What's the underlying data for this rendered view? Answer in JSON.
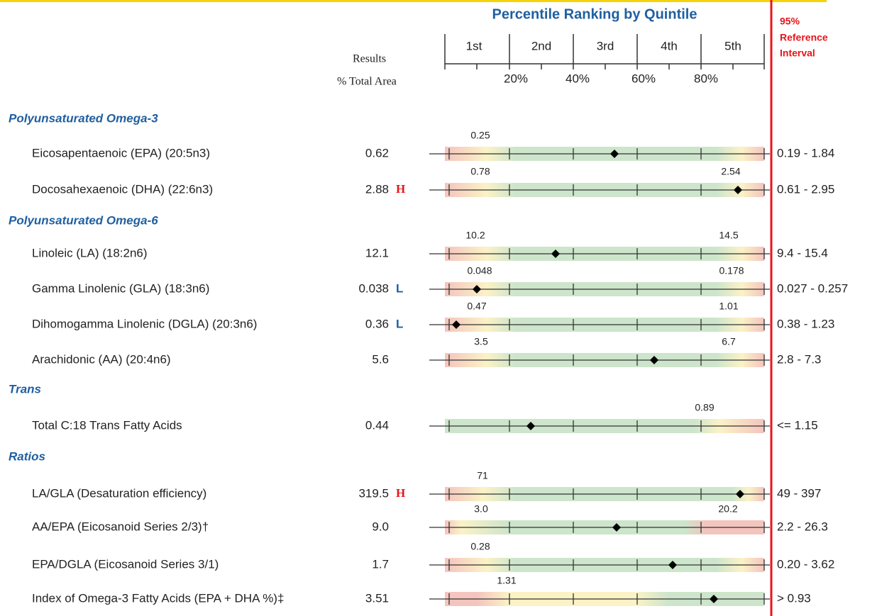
{
  "header": {
    "title": "Percentile Ranking by Quintile",
    "quintiles": [
      "1st",
      "2nd",
      "3rd",
      "4th",
      "5th"
    ],
    "percentiles": [
      "20%",
      "40%",
      "60%",
      "80%"
    ],
    "results_label": "Results",
    "units_label": "% Total Area",
    "reference_label": [
      "95%",
      "Reference",
      "Interval"
    ]
  },
  "sections": [
    {
      "title": "Polyunsaturated Omega-3",
      "rows": [
        {
          "name": "Eicosapentaenoic (EPA) (20:5n3)",
          "result": "0.62",
          "cutoffs": [
            "0.25"
          ],
          "reference": "0.19 - 1.84"
        },
        {
          "name": "Docosahexaenoic (DHA) (22:6n3)",
          "result": "2.88",
          "flag": "H",
          "cutoffs": [
            "0.78",
            "2.54"
          ],
          "reference": "0.61 - 2.95"
        }
      ]
    },
    {
      "title": "Polyunsaturated Omega-6",
      "rows": [
        {
          "name": "Linoleic (LA) (18:2n6)",
          "result": "12.1",
          "cutoffs": [
            "10.2",
            "14.5"
          ],
          "reference": "9.4 - 15.4"
        },
        {
          "name": "Gamma Linolenic (GLA) (18:3n6)",
          "result": "0.038",
          "flag": "L",
          "cutoffs": [
            "0.048",
            "0.178"
          ],
          "reference": "0.027 - 0.257"
        },
        {
          "name": "Dihomogamma Linolenic (DGLA) (20:3n6)",
          "result": "0.36",
          "flag": "L",
          "cutoffs": [
            "0.47",
            "1.01"
          ],
          "reference": "0.38 - 1.23"
        },
        {
          "name": "Arachidonic (AA) (20:4n6)",
          "result": "5.6",
          "cutoffs": [
            "3.5",
            "6.7"
          ],
          "reference": "2.8 - 7.3"
        }
      ]
    },
    {
      "title": "Trans",
      "rows": [
        {
          "name": "Total C:18 Trans Fatty Acids",
          "result": "0.44",
          "cutoffs": [
            "0.89"
          ],
          "reference": "<= 1.15"
        }
      ]
    },
    {
      "title": "Ratios",
      "rows": [
        {
          "name": "LA/GLA (Desaturation efficiency)",
          "result": "319.5",
          "flag": "H",
          "cutoffs": [
            "71"
          ],
          "reference": "49 - 397"
        },
        {
          "name": "AA/EPA (Eicosanoid Series 2/3)†",
          "result": "9.0",
          "cutoffs": [
            "3.0",
            "20.2"
          ],
          "reference": "2.2 - 26.3"
        },
        {
          "name": "EPA/DGLA (Eicosanoid Series 3/1)",
          "result": "1.7",
          "cutoffs": [
            "0.28"
          ],
          "reference": "0.20 - 3.62"
        },
        {
          "name": "Index of Omega-3 Fatty Acids (EPA + DHA %)‡",
          "result": "3.51",
          "cutoffs": [
            "1.31"
          ],
          "reference": "> 0.93"
        }
      ]
    }
  ]
}
